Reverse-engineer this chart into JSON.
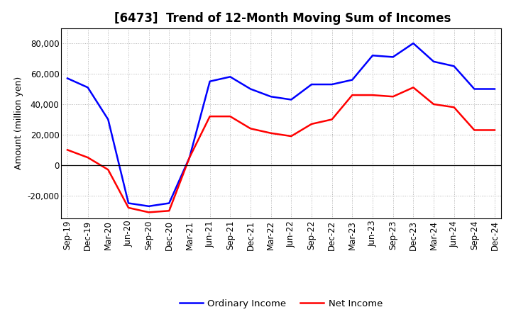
{
  "title": "[6473]  Trend of 12-Month Moving Sum of Incomes",
  "ylabel": "Amount (million yen)",
  "x_labels": [
    "Sep-19",
    "Dec-19",
    "Mar-20",
    "Jun-20",
    "Sep-20",
    "Dec-20",
    "Mar-21",
    "Jun-21",
    "Sep-21",
    "Dec-21",
    "Mar-22",
    "Jun-22",
    "Sep-22",
    "Dec-22",
    "Mar-23",
    "Jun-23",
    "Sep-23",
    "Dec-23",
    "Mar-24",
    "Jun-24",
    "Sep-24",
    "Dec-24"
  ],
  "ordinary_income": [
    57000,
    51000,
    30000,
    -25000,
    -27000,
    -25000,
    5000,
    55000,
    58000,
    50000,
    45000,
    43000,
    53000,
    53000,
    56000,
    72000,
    71000,
    80000,
    68000,
    65000,
    50000,
    50000
  ],
  "net_income": [
    10000,
    5000,
    -3000,
    -28000,
    -31000,
    -30000,
    5000,
    32000,
    32000,
    24000,
    21000,
    19000,
    27000,
    30000,
    46000,
    46000,
    45000,
    51000,
    40000,
    38000,
    23000,
    23000
  ],
  "ordinary_color": "#0000ff",
  "net_color": "#ff0000",
  "background_color": "#ffffff",
  "plot_bg_color": "#ffffff",
  "grid_color": "#aaaaaa",
  "ylim": [
    -35000,
    90000
  ],
  "yticks": [
    -20000,
    0,
    20000,
    40000,
    60000,
    80000
  ],
  "title_fontsize": 12,
  "axis_label_fontsize": 9,
  "tick_fontsize": 8.5,
  "legend_fontsize": 9.5
}
